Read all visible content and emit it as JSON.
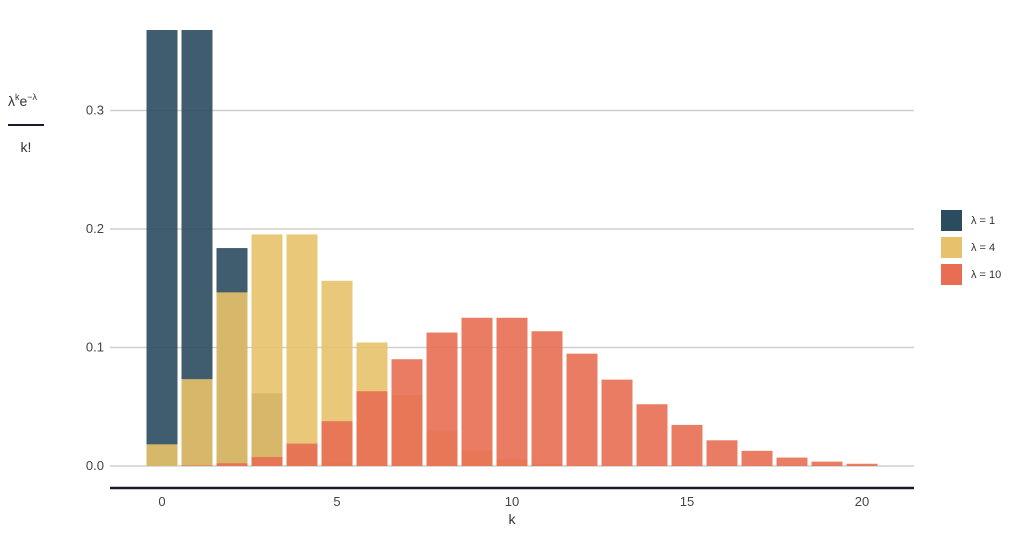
{
  "chart_data": {
    "type": "bar",
    "xlabel": "k",
    "ylabel": {
      "numerator_base": "λ",
      "numerator_sup1": "k",
      "numerator_mid": "e",
      "numerator_sup2": "−λ",
      "denominator": "k!"
    },
    "x": [
      0,
      1,
      2,
      3,
      4,
      5,
      6,
      7,
      8,
      9,
      10,
      11,
      12,
      13,
      14,
      15,
      16,
      17,
      18,
      19,
      20
    ],
    "xticks": [
      0,
      5,
      10,
      15,
      20
    ],
    "xtick_labels": [
      "0",
      "5",
      "10",
      "15",
      "20"
    ],
    "yticks": [
      0.0,
      0.1,
      0.2,
      0.3
    ],
    "ytick_labels": [
      "0.0",
      "0.1",
      "0.2",
      "0.3"
    ],
    "ylim": [
      0,
      0.3679
    ],
    "grid": "horizontal",
    "legend_position": "right",
    "series": [
      {
        "name": "λ = 1",
        "color": "#2b4b5f",
        "values": [
          0.3679,
          0.3679,
          0.1839,
          0.0613,
          0.0153,
          0.0031,
          0.0005,
          0.0001,
          0,
          0,
          0,
          0,
          0,
          0,
          0,
          0,
          0,
          0,
          0,
          0,
          0
        ]
      },
      {
        "name": "λ = 4",
        "color": "#e8c26a",
        "values": [
          0.0183,
          0.0733,
          0.1465,
          0.1954,
          0.1954,
          0.1563,
          0.1042,
          0.0595,
          0.0298,
          0.0132,
          0.0053,
          0.0019,
          0.0006,
          0.0002,
          0,
          0,
          0,
          0,
          0,
          0,
          0
        ]
      },
      {
        "name": "λ = 10",
        "color": "#e76e52",
        "values": [
          0.0,
          0.0005,
          0.0023,
          0.0076,
          0.0189,
          0.0378,
          0.0631,
          0.0901,
          0.1126,
          0.1251,
          0.1251,
          0.1137,
          0.0948,
          0.0729,
          0.0521,
          0.0347,
          0.0217,
          0.0128,
          0.0071,
          0.0037,
          0.0019
        ]
      }
    ]
  }
}
